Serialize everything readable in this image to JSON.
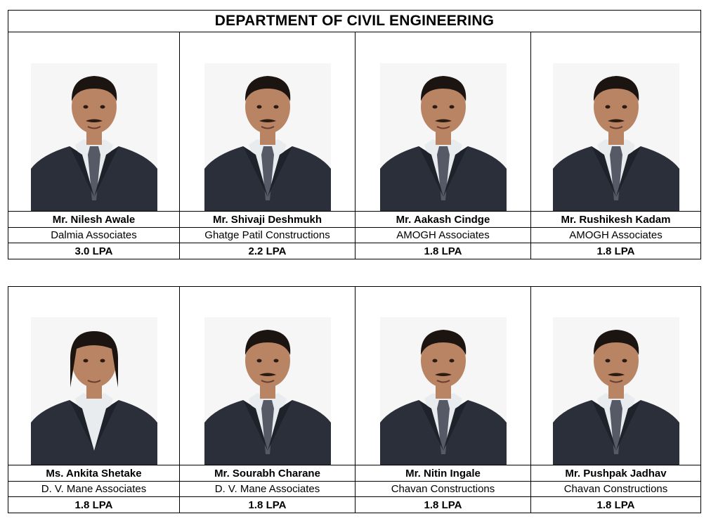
{
  "title": "DEPARTMENT OF CIVIL ENGINEERING",
  "rows": [
    {
      "people": [
        {
          "name": "Mr. Nilesh Awale",
          "company": "Dalmia Associates",
          "package": "3.0  LPA"
        },
        {
          "name": "Mr. Shivaji Deshmukh",
          "company": "Ghatge Patil Constructions",
          "package": "2.2 LPA"
        },
        {
          "name": "Mr. Aakash Cindge",
          "company": "AMOGH Associates",
          "package": "1.8 LPA"
        },
        {
          "name": "Mr. Rushikesh Kadam",
          "company": "AMOGH Associates",
          "package": "1.8 LPA"
        }
      ]
    },
    {
      "people": [
        {
          "name": "Ms. Ankita Shetake",
          "company": "D. V. Mane Associates",
          "package": "1.8  LPA"
        },
        {
          "name": "Mr. Sourabh Charane",
          "company": "D. V. Mane Associates",
          "package": "1.8  LPA"
        },
        {
          "name": "Mr. Nitin Ingale",
          "company": "Chavan Constructions",
          "package": "1.8 LPA"
        },
        {
          "name": "Mr. Pushpak Jadhav",
          "company": "Chavan Constructions",
          "package": "1.8 LPA"
        }
      ]
    }
  ],
  "colors": {
    "border": "#000000",
    "suit": "#2a2f3a",
    "skin": "#b98463",
    "hair": "#1c1410"
  }
}
